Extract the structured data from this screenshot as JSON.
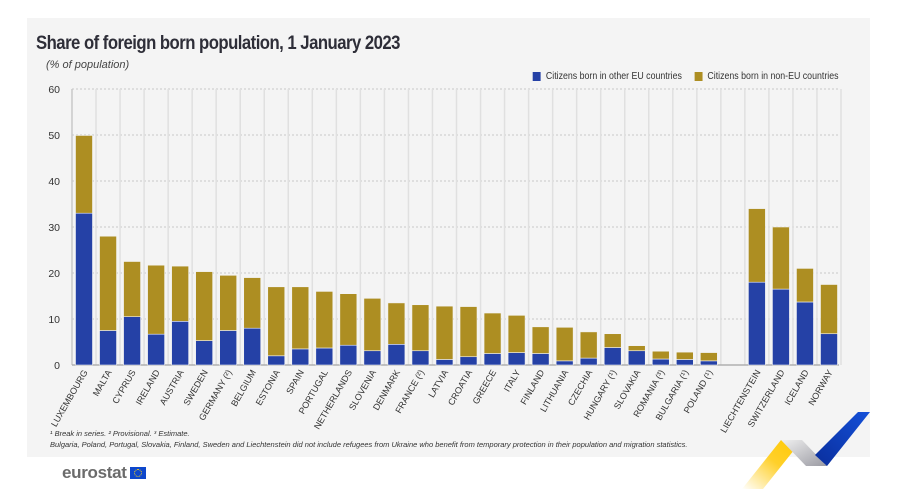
{
  "chart_data": {
    "type": "bar",
    "stacked": true,
    "title": "Share of foreign born population, 1 January 2023",
    "subtitle": "(% of population)",
    "xlabel": "",
    "ylabel": "",
    "ylim": [
      0,
      60
    ],
    "yticks": [
      0,
      10,
      20,
      30,
      40,
      50,
      60
    ],
    "grid": true,
    "legend_position": "top-right",
    "categories": [
      "LUXEMBOURG",
      "MALTA",
      "CYPRUS",
      "IRELAND",
      "AUSTRIA",
      "SWEDEN",
      "GERMANY (²)",
      "BELGIUM",
      "ESTONIA",
      "SPAIN",
      "PORTUGAL",
      "NETHERLANDS",
      "SLOVENIA",
      "DENMARK",
      "FRANCE (²)",
      "LATVIA",
      "CROATIA",
      "GREECE",
      "ITALY",
      "FINLAND",
      "LITHUANIA",
      "CZECHIA",
      "HUNGARY (¹)",
      "SLOVAKIA",
      "ROMANIA (³)",
      "BULGARIA (¹)",
      "POLAND (¹)",
      "",
      "LIECHTENSTEIN",
      "SWITZERLAND",
      "ICELAND",
      "NORWAY"
    ],
    "series": [
      {
        "name": "Citizens born in other EU countries",
        "color": "#2541a6",
        "values": [
          33,
          7.5,
          10.5,
          6.7,
          9.5,
          5.3,
          7.5,
          8,
          2,
          3.5,
          3.7,
          4.3,
          3.1,
          4.5,
          3.1,
          1.2,
          1.8,
          2.5,
          2.7,
          2.5,
          0.9,
          1.5,
          3.8,
          3.1,
          1.3,
          1.2,
          0.9,
          null,
          18,
          16.5,
          13.7,
          6.8
        ]
      },
      {
        "name": "Citizens born in non-EU countries",
        "color": "#ad8e22",
        "values": [
          16.9,
          20.5,
          12,
          15,
          12,
          15,
          12,
          11,
          15,
          13.5,
          12.3,
          11.2,
          11.4,
          9,
          10,
          11.6,
          10.9,
          8.8,
          8.1,
          5.8,
          7.3,
          5.7,
          3,
          1.1,
          1.7,
          1.6,
          1.8,
          null,
          16,
          13.5,
          7.3,
          10.7
        ]
      }
    ]
  },
  "legend": {
    "items": [
      {
        "label": "Citizens born in other EU countries",
        "color": "#2541a6"
      },
      {
        "label": "Citizens born in non-EU countries",
        "color": "#ad8e22"
      }
    ]
  },
  "footnotes": {
    "line1": "¹ Break in series. ² Provisional. ³ Estimate.",
    "line2": "Bulgaria, Poland, Portugal, Slovakia, Finland, Sweden and Liechtenstein did not include refugees from Ukraine who benefit from temporary protection in their population and migration statistics."
  },
  "branding": {
    "logo_text": "eurostat",
    "flag_icon": "eu-flag-icon"
  }
}
